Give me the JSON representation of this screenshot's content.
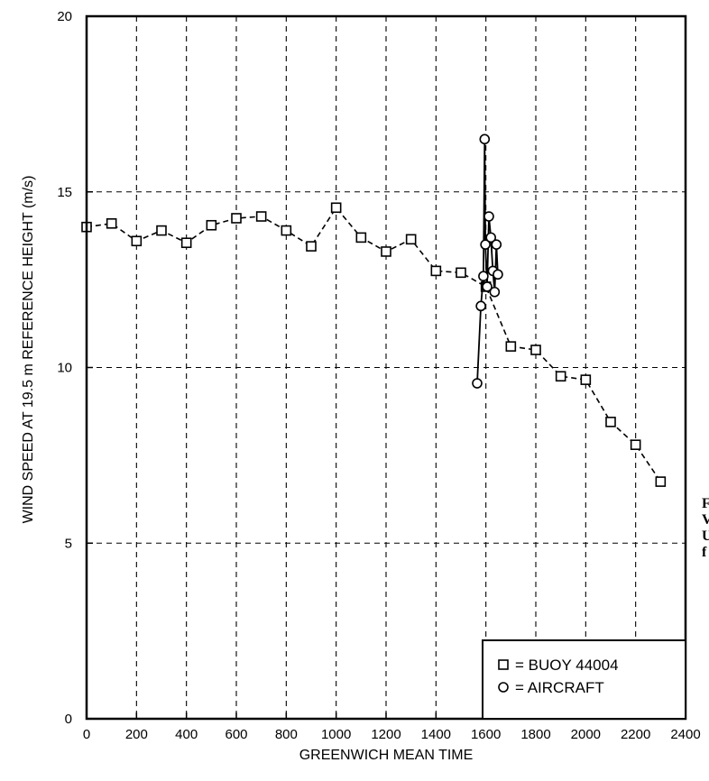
{
  "chart_data": {
    "type": "line",
    "title": "",
    "xlabel": "GREENWICH MEAN TIME",
    "ylabel": "WIND SPEED AT 19.5 m REFERENCE HEIGHT (m/s)",
    "xlim": [
      0,
      2400
    ],
    "ylim": [
      0,
      20
    ],
    "x_ticks": [
      "0",
      "200",
      "400",
      "600",
      "800",
      "1000",
      "1200",
      "1400",
      "1600",
      "1800",
      "2000",
      "2200",
      "2400"
    ],
    "y_ticks": [
      "0",
      "5",
      "10",
      "15",
      "20"
    ],
    "grid": true,
    "legend_position": "bottom-right",
    "series": [
      {
        "name": "BUOY 44004",
        "marker": "square",
        "line_style": "dashed",
        "x": [
          0,
          100,
          200,
          300,
          400,
          500,
          600,
          700,
          800,
          900,
          1000,
          1100,
          1200,
          1300,
          1400,
          1500,
          1600,
          1700,
          1800,
          1900,
          2000,
          2100,
          2200,
          2300
        ],
        "y": [
          14.0,
          14.1,
          13.6,
          13.9,
          13.55,
          14.05,
          14.25,
          14.3,
          13.9,
          13.45,
          14.55,
          13.7,
          13.3,
          13.65,
          12.75,
          12.7,
          12.3,
          10.6,
          10.5,
          9.75,
          9.65,
          8.45,
          7.8,
          6.75
        ]
      },
      {
        "name": "AIRCRAFT",
        "marker": "circle",
        "line_style": "solid",
        "x": [
          1565,
          1580,
          1590,
          1595,
          1598,
          1605,
          1612,
          1620,
          1628,
          1635,
          1642,
          1648
        ],
        "y": [
          9.55,
          11.75,
          12.6,
          16.5,
          13.5,
          12.3,
          14.3,
          13.7,
          12.75,
          12.15,
          13.5,
          12.65
        ]
      }
    ],
    "legend": [
      {
        "symbol": "square",
        "text": "= BUOY 44004"
      },
      {
        "symbol": "circle",
        "text": "= AIRCRAFT"
      }
    ]
  },
  "side_text": [
    "F",
    "V",
    "U",
    "f"
  ]
}
